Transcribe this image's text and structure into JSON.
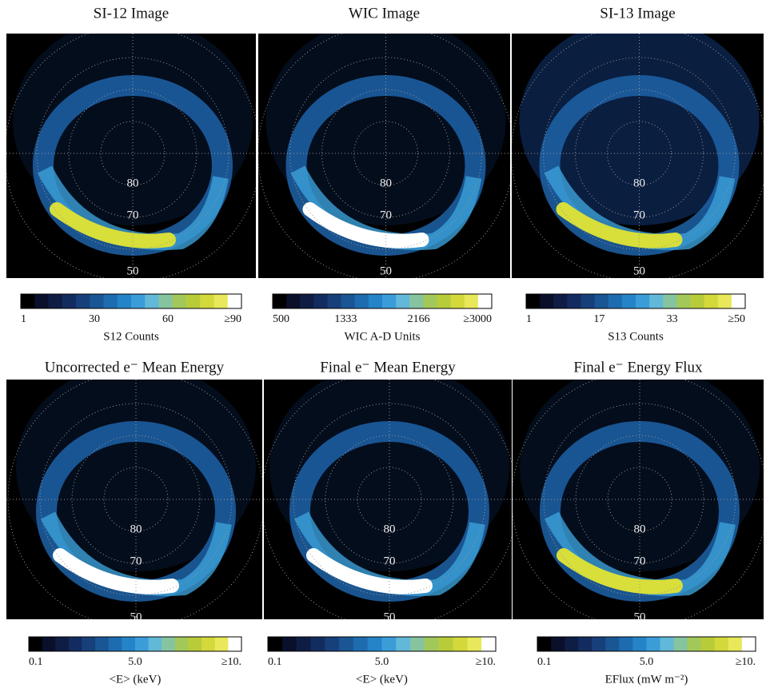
{
  "panels": [
    {
      "title": "SI-12 Image",
      "lat_labels": [
        "80",
        "70",
        "50"
      ],
      "colorbar": {
        "ticks": [
          "1",
          "30",
          "60",
          "≥90"
        ],
        "label": "S12 Counts"
      }
    },
    {
      "title": "WIC Image",
      "lat_labels": [
        "80",
        "70",
        "50"
      ],
      "colorbar": {
        "ticks": [
          "500",
          "1333",
          "2166",
          "≥3000"
        ],
        "label": "WIC A-D Units"
      }
    },
    {
      "title": "SI-13 Image",
      "lat_labels": [
        "80",
        "70",
        "50"
      ],
      "colorbar": {
        "ticks": [
          "1",
          "17",
          "33",
          "≥50"
        ],
        "label": "S13 Counts"
      }
    },
    {
      "title": "Uncorrected e⁻ Mean Energy",
      "lat_labels": [
        "80",
        "70",
        "50"
      ],
      "colorbar": {
        "ticks": [
          "0.1",
          "5.0",
          "≥10."
        ],
        "label": "<E> (keV)"
      }
    },
    {
      "title": "Final e⁻ Mean Energy",
      "lat_labels": [
        "80",
        "70",
        "50"
      ],
      "colorbar": {
        "ticks": [
          "0.1",
          "5.0",
          "≥10."
        ],
        "label": "<E> (keV)"
      }
    },
    {
      "title": "Final e⁻ Energy Flux",
      "lat_labels": [
        "80",
        "70",
        "50"
      ],
      "colorbar": {
        "ticks": [
          "0.1",
          "5.0",
          "≥10."
        ],
        "label": "EFlux (mW m⁻²)"
      }
    }
  ]
}
